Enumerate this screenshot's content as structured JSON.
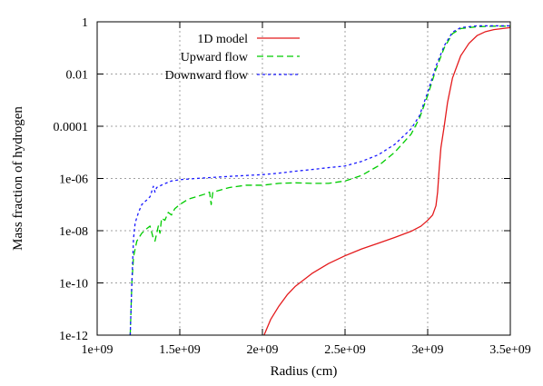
{
  "chart_data": {
    "type": "line",
    "xlabel": "Radius (cm)",
    "ylabel": "Mass fraction of hydrogen",
    "xlim": [
      1000000000.0,
      3500000000.0
    ],
    "ylim": [
      1e-12,
      1
    ],
    "yscale": "log",
    "grid": true,
    "legend_position": "top-left",
    "x_ticks": [
      {
        "value": 1000000000.0,
        "label": "1e+09"
      },
      {
        "value": 1500000000.0,
        "label": "1.5e+09"
      },
      {
        "value": 2000000000.0,
        "label": "2e+09"
      },
      {
        "value": 2500000000.0,
        "label": "2.5e+09"
      },
      {
        "value": 3000000000.0,
        "label": "3e+09"
      },
      {
        "value": 3500000000.0,
        "label": "3.5e+09"
      }
    ],
    "y_ticks": [
      {
        "value": 1,
        "label": "1"
      },
      {
        "value": 0.01,
        "label": "0.01"
      },
      {
        "value": 0.0001,
        "label": "0.0001"
      },
      {
        "value": 1e-06,
        "label": "1e-06"
      },
      {
        "value": 1e-08,
        "label": "1e-08"
      },
      {
        "value": 1e-10,
        "label": "1e-10"
      },
      {
        "value": 1e-12,
        "label": "1e-12"
      }
    ],
    "series": [
      {
        "name": "1D model",
        "color": "#e41a1c",
        "dash": "solid",
        "points": [
          [
            2010000000.0,
            1e-12
          ],
          [
            2050000000.0,
            4e-12
          ],
          [
            2100000000.0,
            1.3e-11
          ],
          [
            2150000000.0,
            3.5e-11
          ],
          [
            2200000000.0,
            7.5e-11
          ],
          [
            2300000000.0,
            2.3e-10
          ],
          [
            2400000000.0,
            5.5e-10
          ],
          [
            2500000000.0,
            1.1e-09
          ],
          [
            2600000000.0,
            2e-09
          ],
          [
            2700000000.0,
            3.3e-09
          ],
          [
            2800000000.0,
            5.5e-09
          ],
          [
            2900000000.0,
            9.5e-09
          ],
          [
            2960000000.0,
            1.5e-08
          ],
          [
            3000000000.0,
            2.5e-08
          ],
          [
            3030000000.0,
            4e-08
          ],
          [
            3050000000.0,
            9e-08
          ],
          [
            3060000000.0,
            3e-07
          ],
          [
            3070000000.0,
            2.5e-06
          ],
          [
            3080000000.0,
            1.5e-05
          ],
          [
            3100000000.0,
            0.0001
          ],
          [
            3120000000.0,
            0.0008
          ],
          [
            3150000000.0,
            0.007
          ],
          [
            3200000000.0,
            0.05
          ],
          [
            3250000000.0,
            0.15
          ],
          [
            3300000000.0,
            0.3
          ],
          [
            3350000000.0,
            0.42
          ],
          [
            3400000000.0,
            0.5
          ],
          [
            3450000000.0,
            0.55
          ],
          [
            3500000000.0,
            0.6
          ]
        ]
      },
      {
        "name": "Upward flow",
        "color": "#00cc00",
        "dash": "dashed",
        "points": [
          [
            1200000000.0,
            1e-12
          ],
          [
            1210000000.0,
            1e-10
          ],
          [
            1220000000.0,
            1e-09
          ],
          [
            1240000000.0,
            4e-09
          ],
          [
            1270000000.0,
            8e-09
          ],
          [
            1300000000.0,
            1.2e-08
          ],
          [
            1320000000.0,
            1.5e-08
          ],
          [
            1340000000.0,
            5e-09
          ],
          [
            1350000000.0,
            4e-09
          ],
          [
            1370000000.0,
            1.5e-08
          ],
          [
            1380000000.0,
            8e-09
          ],
          [
            1390000000.0,
            3e-08
          ],
          [
            1410000000.0,
            2.5e-08
          ],
          [
            1430000000.0,
            5e-08
          ],
          [
            1450000000.0,
            4e-08
          ],
          [
            1470000000.0,
            7e-08
          ],
          [
            1500000000.0,
            1e-07
          ],
          [
            1550000000.0,
            1.6e-07
          ],
          [
            1600000000.0,
            2e-07
          ],
          [
            1650000000.0,
            2.5e-07
          ],
          [
            1680000000.0,
            3e-07
          ],
          [
            1690000000.0,
            1e-07
          ],
          [
            1700000000.0,
            3e-07
          ],
          [
            1800000000.0,
            4.5e-07
          ],
          [
            1900000000.0,
            5.5e-07
          ],
          [
            2000000000.0,
            5.5e-07
          ],
          [
            2100000000.0,
            6.5e-07
          ],
          [
            2200000000.0,
            6.8e-07
          ],
          [
            2300000000.0,
            6.5e-07
          ],
          [
            2400000000.0,
            6.5e-07
          ],
          [
            2500000000.0,
            8e-07
          ],
          [
            2600000000.0,
            1.3e-06
          ],
          [
            2700000000.0,
            3e-06
          ],
          [
            2800000000.0,
            1e-05
          ],
          [
            2900000000.0,
            5e-05
          ],
          [
            2950000000.0,
            0.0002
          ],
          [
            3000000000.0,
            0.0015
          ],
          [
            3050000000.0,
            0.015
          ],
          [
            3100000000.0,
            0.1
          ],
          [
            3150000000.0,
            0.35
          ],
          [
            3200000000.0,
            0.55
          ],
          [
            3300000000.0,
            0.65
          ],
          [
            3400000000.0,
            0.68
          ],
          [
            3500000000.0,
            0.68
          ]
        ]
      },
      {
        "name": "Downward flow",
        "color": "#1a1aff",
        "dash": "dotted",
        "points": [
          [
            1200000000.0,
            1e-12
          ],
          [
            1210000000.0,
            1e-10
          ],
          [
            1220000000.0,
            5e-09
          ],
          [
            1230000000.0,
            2e-08
          ],
          [
            1250000000.0,
            5e-08
          ],
          [
            1270000000.0,
            1e-07
          ],
          [
            1300000000.0,
            1.5e-07
          ],
          [
            1320000000.0,
            2e-07
          ],
          [
            1340000000.0,
            5e-07
          ],
          [
            1350000000.0,
            3e-07
          ],
          [
            1360000000.0,
            4.5e-07
          ],
          [
            1400000000.0,
            6e-07
          ],
          [
            1450000000.0,
            8e-07
          ],
          [
            1500000000.0,
            9e-07
          ],
          [
            1600000000.0,
            1e-06
          ],
          [
            1700000000.0,
            1.1e-06
          ],
          [
            1800000000.0,
            1.2e-06
          ],
          [
            1900000000.0,
            1.3e-06
          ],
          [
            2000000000.0,
            1.4e-06
          ],
          [
            2100000000.0,
            1.6e-06
          ],
          [
            2200000000.0,
            1.9e-06
          ],
          [
            2300000000.0,
            2.2e-06
          ],
          [
            2400000000.0,
            2.6e-06
          ],
          [
            2500000000.0,
            3e-06
          ],
          [
            2600000000.0,
            4.5e-06
          ],
          [
            2700000000.0,
            8e-06
          ],
          [
            2800000000.0,
            2e-05
          ],
          [
            2900000000.0,
            8e-05
          ],
          [
            2950000000.0,
            0.00025
          ],
          [
            3000000000.0,
            0.002
          ],
          [
            3050000000.0,
            0.02
          ],
          [
            3100000000.0,
            0.12
          ],
          [
            3150000000.0,
            0.4
          ],
          [
            3200000000.0,
            0.6
          ],
          [
            3300000000.0,
            0.7
          ],
          [
            3400000000.0,
            0.7
          ],
          [
            3500000000.0,
            0.7
          ]
        ]
      }
    ]
  }
}
